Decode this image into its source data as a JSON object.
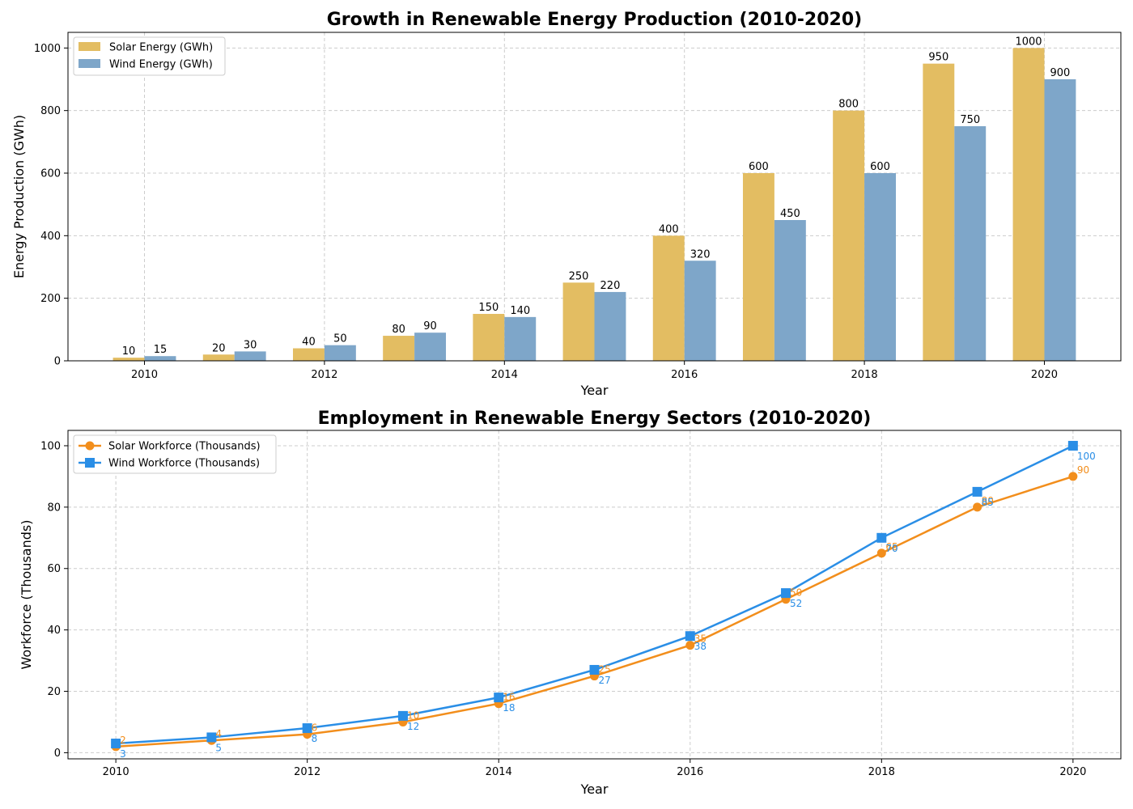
{
  "chart_data": [
    {
      "type": "bar",
      "title": "Growth in Renewable Energy Production (2010-2020)",
      "xlabel": "Year",
      "ylabel": "Energy Production (GWh)",
      "categories": [
        2010,
        2011,
        2012,
        2013,
        2014,
        2015,
        2016,
        2017,
        2018,
        2019,
        2020
      ],
      "x_ticks": [
        2010,
        2012,
        2014,
        2016,
        2018,
        2020
      ],
      "y_ticks": [
        0,
        200,
        400,
        600,
        800,
        1000
      ],
      "ylim": [
        0,
        1050
      ],
      "grid": true,
      "legend_position": "top-left",
      "series": [
        {
          "name": "Solar Energy (GWh)",
          "color": "#e3bd62",
          "values": [
            10,
            20,
            40,
            80,
            150,
            250,
            400,
            600,
            800,
            950,
            1000
          ]
        },
        {
          "name": "Wind Energy (GWh)",
          "color": "#7ea6c9",
          "values": [
            15,
            30,
            50,
            90,
            140,
            220,
            320,
            450,
            600,
            750,
            900
          ]
        }
      ]
    },
    {
      "type": "line",
      "title": "Employment in Renewable Energy Sectors (2010-2020)",
      "xlabel": "Year",
      "ylabel": "Workforce (Thousands)",
      "x": [
        2010,
        2011,
        2012,
        2013,
        2014,
        2015,
        2016,
        2017,
        2018,
        2019,
        2020
      ],
      "x_ticks": [
        2010,
        2012,
        2014,
        2016,
        2018,
        2020
      ],
      "y_ticks": [
        0,
        20,
        40,
        60,
        80,
        100
      ],
      "xlim": [
        2009.5,
        2020.5
      ],
      "ylim": [
        -2,
        105
      ],
      "grid": true,
      "legend_position": "top-left",
      "series": [
        {
          "name": "Solar Workforce (Thousands)",
          "color": "#f28e1c",
          "marker": "circle",
          "values": [
            2,
            4,
            6,
            10,
            16,
            25,
            35,
            50,
            65,
            80,
            90
          ]
        },
        {
          "name": "Wind Workforce (Thousands)",
          "color": "#2a8ee6",
          "marker": "square",
          "values": [
            3,
            5,
            8,
            12,
            18,
            27,
            38,
            52,
            70,
            85,
            100
          ]
        }
      ]
    }
  ]
}
